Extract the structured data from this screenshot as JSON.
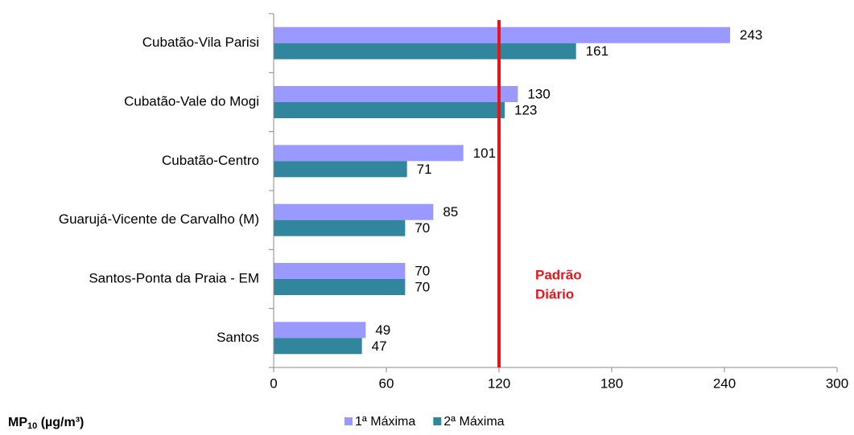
{
  "chart_data": {
    "type": "hbar",
    "categories": [
      "Cubatão-Vila Parisi",
      "Cubatão-Vale do Mogi",
      "Cubatão-Centro",
      "Guarujá-Vicente de Carvalho (M)",
      "Santos-Ponta da Praia - EM",
      "Santos"
    ],
    "series": [
      {
        "name": "1ª Máxima",
        "color": "#9999ff",
        "values": [
          243,
          130,
          101,
          85,
          70,
          49
        ]
      },
      {
        "name": "2ª Máxima",
        "color": "#31859c",
        "values": [
          161,
          123,
          71,
          70,
          70,
          47
        ]
      }
    ],
    "xlim": [
      0,
      300
    ],
    "xticks": [
      0,
      60,
      120,
      180,
      240,
      300
    ],
    "xlabel_parts": [
      "MP",
      "10",
      " (µg/m³)"
    ],
    "reference_line": {
      "value": 120,
      "color": "#e8141b",
      "label_lines": [
        "Padrão",
        "Diário"
      ]
    },
    "legend": "bottom"
  }
}
